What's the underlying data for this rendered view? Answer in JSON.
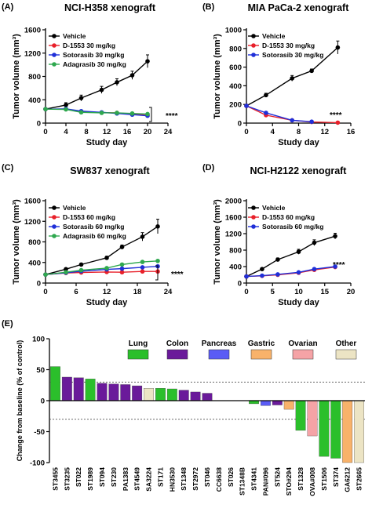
{
  "chart_data": [
    {
      "type": "line",
      "panel_label": "(A)",
      "title": "NCI-H358 xenograft",
      "xlabel": "Study day",
      "ylabel": "Tumor volume (mm³)",
      "xlim": [
        0,
        24
      ],
      "ylim": [
        0,
        1600
      ],
      "xticks": [
        0,
        4,
        8,
        12,
        16,
        20,
        24
      ],
      "yticks": [
        0,
        400,
        800,
        1200,
        1600
      ],
      "annotation": "****",
      "series": [
        {
          "name": "Vehicle",
          "color": "#000000",
          "x": [
            0,
            4,
            7,
            11,
            14,
            17,
            20
          ],
          "y": [
            240,
            310,
            430,
            570,
            700,
            820,
            1060
          ],
          "err": [
            20,
            40,
            50,
            60,
            60,
            70,
            110
          ]
        },
        {
          "name": "D-1553 30 mg/kg",
          "color": "#e8202a",
          "x": [
            0,
            4,
            7,
            11,
            14,
            17,
            20
          ],
          "y": [
            240,
            240,
            200,
            180,
            175,
            155,
            145
          ],
          "err": [
            15,
            15,
            15,
            15,
            15,
            15,
            15
          ]
        },
        {
          "name": "Sotorasib 30 mg/kg",
          "color": "#1f2fd8",
          "x": [
            0,
            4,
            7,
            11,
            14,
            17,
            20
          ],
          "y": [
            240,
            245,
            205,
            185,
            165,
            145,
            125
          ],
          "err": [
            15,
            15,
            15,
            15,
            15,
            15,
            15
          ]
        },
        {
          "name": "Adagrasib 30 mg/kg",
          "color": "#2fa84f",
          "x": [
            0,
            4,
            7,
            11,
            14,
            17,
            20
          ],
          "y": [
            240,
            235,
            185,
            175,
            175,
            165,
            155
          ],
          "err": [
            15,
            15,
            15,
            15,
            15,
            15,
            15
          ]
        }
      ]
    },
    {
      "type": "line",
      "panel_label": "(B)",
      "title": "MIA PaCa-2 xenograft",
      "xlabel": "Study day",
      "ylabel": "Tumor volume (mm³)",
      "xlim": [
        0,
        16
      ],
      "ylim": [
        0,
        1000
      ],
      "xticks": [
        0,
        4,
        8,
        12,
        16
      ],
      "yticks": [
        0,
        200,
        400,
        600,
        800,
        1000
      ],
      "annotation": "****",
      "series": [
        {
          "name": "Vehicle",
          "color": "#000000",
          "x": [
            0,
            3,
            7,
            10,
            14
          ],
          "y": [
            185,
            300,
            480,
            560,
            810
          ],
          "err": [
            15,
            20,
            30,
            20,
            70
          ]
        },
        {
          "name": "D-1553 30 mg/kg",
          "color": "#e8202a",
          "x": [
            0,
            3,
            7,
            10,
            14
          ],
          "y": [
            185,
            85,
            30,
            12,
            5
          ],
          "err": [
            10,
            10,
            8,
            5,
            3
          ]
        },
        {
          "name": "Sotorasib 30 mg/kg",
          "color": "#1f2fd8",
          "x": [
            0,
            3,
            7,
            10
          ],
          "y": [
            185,
            110,
            30,
            15
          ],
          "err": [
            10,
            10,
            8,
            5
          ]
        }
      ]
    },
    {
      "type": "line",
      "panel_label": "(C)",
      "title": "SW837 xenograft",
      "xlabel": "Study day",
      "ylabel": "Tumor volume (mm³)",
      "xlim": [
        0,
        24
      ],
      "ylim": [
        0,
        1600
      ],
      "xticks": [
        0,
        6,
        12,
        18,
        24
      ],
      "yticks": [
        0,
        400,
        800,
        1200,
        1600
      ],
      "annotation": "****",
      "series": [
        {
          "name": "Vehicle",
          "color": "#000000",
          "x": [
            0,
            4,
            7,
            12,
            15,
            19,
            22
          ],
          "y": [
            165,
            270,
            360,
            490,
            700,
            900,
            1100
          ],
          "err": [
            10,
            20,
            25,
            30,
            40,
            80,
            140
          ]
        },
        {
          "name": "D-1553 60 mg/kg",
          "color": "#e8202a",
          "x": [
            0,
            4,
            7,
            12,
            15,
            19,
            22
          ],
          "y": [
            165,
            195,
            205,
            215,
            210,
            225,
            225
          ],
          "err": [
            10,
            10,
            10,
            10,
            10,
            10,
            10
          ]
        },
        {
          "name": "Sotorasib 60 mg/kg",
          "color": "#1f2fd8",
          "x": [
            0,
            4,
            7,
            12,
            15,
            19,
            22
          ],
          "y": [
            165,
            200,
            230,
            265,
            280,
            305,
            325
          ],
          "err": [
            10,
            10,
            10,
            15,
            15,
            15,
            15
          ]
        },
        {
          "name": "Adagrasib 60 mg/kg",
          "color": "#2fa84f",
          "x": [
            0,
            4,
            7,
            12,
            15,
            19,
            22
          ],
          "y": [
            165,
            210,
            250,
            290,
            360,
            410,
            430
          ],
          "err": [
            10,
            10,
            15,
            15,
            20,
            20,
            20
          ]
        }
      ]
    },
    {
      "type": "line",
      "panel_label": "(D)",
      "title": "NCI-H2122 xenograft",
      "xlabel": "Study day",
      "ylabel": "Tumor volume (mm³)",
      "xlim": [
        0,
        20
      ],
      "ylim": [
        0,
        2000
      ],
      "xticks": [
        0,
        5,
        10,
        15,
        20
      ],
      "yticks": [
        0,
        400,
        800,
        1200,
        1600,
        2000
      ],
      "annotation": "****",
      "series": [
        {
          "name": "Vehicle",
          "color": "#000000",
          "x": [
            0,
            3,
            6,
            10,
            13,
            17
          ],
          "y": [
            160,
            340,
            570,
            760,
            980,
            1140
          ],
          "err": [
            15,
            25,
            40,
            60,
            70,
            70
          ]
        },
        {
          "name": "D-1553 60 mg/kg",
          "color": "#e8202a",
          "x": [
            0,
            3,
            6,
            10,
            13,
            17
          ],
          "y": [
            160,
            175,
            200,
            250,
            320,
            390
          ],
          "err": [
            15,
            15,
            15,
            20,
            20,
            20
          ]
        },
        {
          "name": "Sotorasib 60 mg/kg",
          "color": "#1f2fd8",
          "x": [
            0,
            3,
            6,
            10,
            13,
            17
          ],
          "y": [
            160,
            180,
            210,
            260,
            340,
            400
          ],
          "err": [
            15,
            15,
            15,
            20,
            20,
            20
          ]
        }
      ]
    },
    {
      "type": "bar",
      "panel_label": "(E)",
      "title": "",
      "xlabel": "",
      "ylabel": "Change from baseline (% of control)",
      "ylim": [
        -100,
        100
      ],
      "yticks": [
        -100,
        -50,
        0,
        50,
        100
      ],
      "reference_lines": [
        30,
        -30
      ],
      "legend": [
        {
          "name": "Lung",
          "color": "#2bbf2b"
        },
        {
          "name": "Colon",
          "color": "#6a1a9a"
        },
        {
          "name": "Pancreas",
          "color": "#5a5cf5"
        },
        {
          "name": "Gastric",
          "color": "#f8b26a"
        },
        {
          "name": "Ovarian",
          "color": "#f5a3a6"
        },
        {
          "name": "Other",
          "color": "#ece4c4"
        }
      ],
      "categories": [
        "ST3455",
        "ST3235",
        "ST022",
        "ST1989",
        "ST094",
        "ST230",
        "PA1383",
        "ST4549",
        "SA3224",
        "ST171",
        "HN3530",
        "ST1348",
        "ST2972",
        "ST046",
        "CC6638",
        "ST026",
        "ST1348B",
        "ST4341",
        "PAN#096",
        "ST524",
        "STO#294",
        "ST1328",
        "OVA#008",
        "ST1506",
        "ST374",
        "GA6212",
        "ST2665"
      ],
      "values": [
        55,
        38,
        37,
        35,
        28,
        27,
        26,
        24,
        20,
        20,
        19,
        17,
        14,
        12,
        0,
        0,
        0,
        -5,
        -8,
        -7,
        -14,
        -48,
        -57,
        -90,
        -93,
        -100,
        -100
      ],
      "groups": [
        "Lung",
        "Colon",
        "Colon",
        "Lung",
        "Colon",
        "Colon",
        "Colon",
        "Colon",
        "Other",
        "Lung",
        "Lung",
        "Colon",
        "Colon",
        "Colon",
        "Colon",
        "Colon",
        "Colon",
        "Lung",
        "Pancreas",
        "Colon",
        "Gastric",
        "Lung",
        "Ovarian",
        "Lung",
        "Lung",
        "Gastric",
        "Other"
      ]
    }
  ]
}
